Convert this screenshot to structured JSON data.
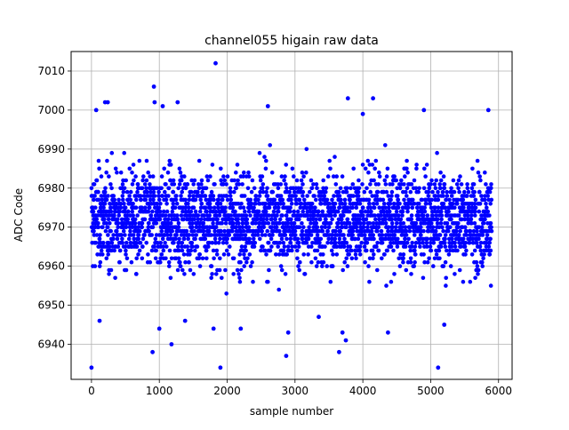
{
  "chart_data": {
    "type": "scatter",
    "title": "channel055 higain raw data",
    "xlabel": "sample number",
    "ylabel": "ADC Code",
    "xlim": [
      -300,
      6200
    ],
    "ylim": [
      6931,
      7015
    ],
    "xticks": [
      0,
      1000,
      2000,
      3000,
      4000,
      5000,
      6000
    ],
    "yticks": [
      6940,
      6950,
      6960,
      6970,
      6980,
      6990,
      7000,
      7010
    ],
    "grid": true,
    "marker_color": "#0000ff",
    "series": [
      {
        "n_points": 5900,
        "x_range": [
          0,
          5900
        ],
        "typical_band": [
          6955,
          6990
        ],
        "center": 6972,
        "points": [
          {
            "x": 0,
            "y": 6934
          },
          {
            "x": 70,
            "y": 7000
          },
          {
            "x": 120,
            "y": 6946
          },
          {
            "x": 200,
            "y": 7002
          },
          {
            "x": 240,
            "y": 7002
          },
          {
            "x": 660,
            "y": 6958
          },
          {
            "x": 900,
            "y": 6938
          },
          {
            "x": 920,
            "y": 7006
          },
          {
            "x": 930,
            "y": 7002
          },
          {
            "x": 1000,
            "y": 6944
          },
          {
            "x": 1050,
            "y": 7001
          },
          {
            "x": 1180,
            "y": 6940
          },
          {
            "x": 1270,
            "y": 7002
          },
          {
            "x": 1380,
            "y": 6946
          },
          {
            "x": 1800,
            "y": 6944
          },
          {
            "x": 1830,
            "y": 7012
          },
          {
            "x": 1900,
            "y": 6934
          },
          {
            "x": 2200,
            "y": 6944
          },
          {
            "x": 2600,
            "y": 7001
          },
          {
            "x": 2870,
            "y": 6937
          },
          {
            "x": 2900,
            "y": 6943
          },
          {
            "x": 3350,
            "y": 6947
          },
          {
            "x": 3650,
            "y": 6938
          },
          {
            "x": 3700,
            "y": 6943
          },
          {
            "x": 3750,
            "y": 6941
          },
          {
            "x": 3780,
            "y": 7003
          },
          {
            "x": 4000,
            "y": 6999
          },
          {
            "x": 4150,
            "y": 7003
          },
          {
            "x": 4370,
            "y": 6943
          },
          {
            "x": 4900,
            "y": 7000
          },
          {
            "x": 5110,
            "y": 6934
          },
          {
            "x": 5200,
            "y": 6945
          },
          {
            "x": 5850,
            "y": 7000
          }
        ]
      }
    ]
  }
}
